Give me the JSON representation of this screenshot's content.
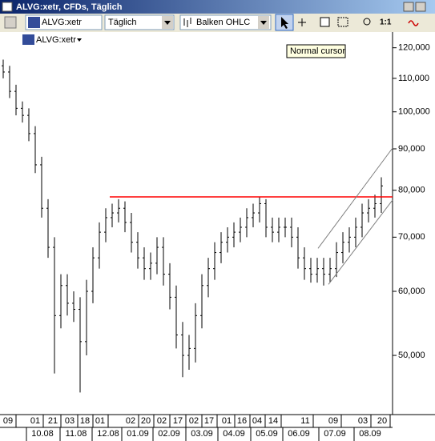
{
  "window": {
    "title": "ALVG:xetr, CFDs, Täglich"
  },
  "toolbar": {
    "symbol": "ALVG:xetr",
    "interval": "Täglich",
    "chart_style": "Balken OHLC",
    "zoom": "1:1",
    "tooltip": "Normal cursor"
  },
  "chart_header": {
    "symbol": "ALVG:xetr"
  },
  "chart_data": {
    "type": "ohlc",
    "log_scale": true,
    "color": "#000000",
    "open": [
      114000,
      112000,
      106000,
      101000,
      99000,
      94000,
      86000,
      76000,
      68000,
      56000,
      61000,
      58000,
      57000,
      52000,
      60000,
      66000,
      71000,
      74000,
      75000,
      76000,
      73000,
      69000,
      66000,
      64000,
      65000,
      68000,
      63000,
      59000,
      53000,
      50000,
      51000,
      56000,
      61000,
      64000,
      67000,
      69000,
      70000,
      71000,
      72000,
      74000,
      75000,
      77000,
      72000,
      71000,
      72000,
      72000,
      70000,
      66000,
      64000,
      63000,
      64000,
      63000,
      64000,
      67000,
      69000,
      70000,
      72000,
      75000,
      76000,
      77000
    ],
    "high": [
      116000,
      114000,
      108000,
      103000,
      101000,
      96000,
      88000,
      78000,
      70000,
      63000,
      63000,
      60000,
      59000,
      62000,
      68000,
      73000,
      76000,
      77000,
      78000,
      77500,
      75000,
      71000,
      68000,
      67000,
      70000,
      70000,
      65000,
      61000,
      55000,
      53000,
      58000,
      63000,
      66000,
      69000,
      71000,
      72000,
      73000,
      74000,
      76000,
      77000,
      78500,
      78000,
      74000,
      74000,
      74000,
      74000,
      72000,
      68000,
      66000,
      66000,
      66000,
      66000,
      69000,
      71000,
      72000,
      74000,
      77000,
      78000,
      79000,
      83000
    ],
    "low": [
      110000,
      104000,
      99000,
      97000,
      92000,
      84000,
      74000,
      66000,
      47500,
      54000,
      56000,
      55000,
      45000,
      50000,
      58000,
      64000,
      69000,
      72000,
      73000,
      71000,
      67000,
      64000,
      62000,
      62000,
      63000,
      61000,
      57000,
      51000,
      47000,
      48000,
      49000,
      54000,
      59000,
      62000,
      65000,
      67000,
      68000,
      69000,
      70000,
      72000,
      73000,
      70000,
      69000,
      69000,
      70000,
      68000,
      64000,
      62000,
      61500,
      61500,
      61000,
      61500,
      62500,
      65000,
      67000,
      68000,
      70000,
      73000,
      74000,
      75000
    ],
    "close": [
      112000,
      106000,
      101000,
      99000,
      94000,
      86000,
      76000,
      68000,
      56000,
      61000,
      58000,
      57000,
      52000,
      60000,
      66000,
      71000,
      74000,
      75000,
      76000,
      73000,
      69000,
      66000,
      64000,
      65000,
      68000,
      63000,
      59000,
      53000,
      50000,
      51000,
      56000,
      61000,
      64000,
      67000,
      69000,
      70000,
      71000,
      72000,
      74000,
      75000,
      77000,
      72000,
      71000,
      72000,
      72000,
      70000,
      66000,
      64000,
      63000,
      64000,
      63000,
      64000,
      67000,
      69000,
      70000,
      72000,
      75000,
      76000,
      77000,
      81000
    ],
    "ylim": [
      42250,
      125500
    ],
    "yticks": [
      {
        "value": 50000,
        "label": "50,000"
      },
      {
        "value": 60000,
        "label": "60,000"
      },
      {
        "value": 70000,
        "label": "70,000"
      },
      {
        "value": 80000,
        "label": "80,000"
      },
      {
        "value": 90000,
        "label": "90,000"
      },
      {
        "value": 100000,
        "label": "100,000"
      },
      {
        "value": 110000,
        "label": "110,000"
      },
      {
        "value": 120000,
        "label": "120,000"
      }
    ],
    "lines": [
      {
        "color": "#ff0000",
        "values": [
          78500,
          78500
        ]
      },
      {
        "color": "#808080",
        "values": [
          67800,
          90200
        ]
      },
      {
        "color": "#808080",
        "values": [
          61200,
          77800
        ]
      }
    ],
    "x_labels_days": [
      "09",
      "01",
      "21",
      "03",
      "18",
      "01",
      "02",
      "20",
      "02",
      "17",
      "02",
      "17",
      "01",
      "16",
      "04",
      "14",
      "11",
      "09",
      "03",
      "20"
    ],
    "x_labels_months": [
      "10.08",
      "11.08",
      "12.08",
      "01.09",
      "02.09",
      "03.09",
      "04.09",
      "05.09",
      "06.09",
      "07.09",
      "08.09"
    ]
  }
}
